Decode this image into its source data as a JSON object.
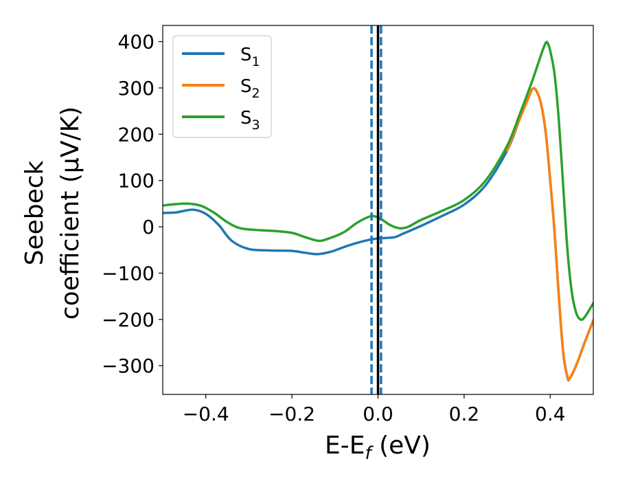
{
  "chart_data": {
    "type": "line",
    "xlabel": "E-E_f (eV)",
    "xlabel_parts": {
      "main": "E-E",
      "sub": "f",
      "tail": " (eV)"
    },
    "ylabel_line1": "Seebeck",
    "ylabel_line2": "coefficient  (μV/K)",
    "xlim": [
      -0.5,
      0.5
    ],
    "ylim": [
      -362,
      435
    ],
    "xticks": [
      -0.4,
      -0.2,
      0.0,
      0.2,
      0.4
    ],
    "xtick_labels": [
      "−0.4",
      "−0.2",
      "0.0",
      "0.2",
      "0.4"
    ],
    "yticks": [
      400,
      300,
      200,
      100,
      0,
      -100,
      -200,
      -300
    ],
    "ytick_labels": [
      "400",
      "300",
      "200",
      "100",
      "0",
      "−100",
      "−200",
      "−300"
    ],
    "grid": false,
    "legend_position": "top-left",
    "vlines": [
      {
        "x": -0.015,
        "style": "dashed",
        "color": "#1f77b4"
      },
      {
        "x": 0.007,
        "style": "dashed",
        "color": "#1f77b4"
      },
      {
        "x": 0.0,
        "style": "solid",
        "color": "#000000"
      }
    ],
    "series": [
      {
        "name": "S_1",
        "label_main": "S",
        "label_sub": "1",
        "color": "#1f77b4",
        "points": [
          [
            -0.5,
            30
          ],
          [
            -0.47,
            31
          ],
          [
            -0.43,
            37
          ],
          [
            -0.4,
            28
          ],
          [
            -0.37,
            4
          ],
          [
            -0.34,
            -30
          ],
          [
            -0.3,
            -48
          ],
          [
            -0.25,
            -51
          ],
          [
            -0.2,
            -52
          ],
          [
            -0.17,
            -56
          ],
          [
            -0.14,
            -59
          ],
          [
            -0.11,
            -54
          ],
          [
            -0.08,
            -44
          ],
          [
            -0.05,
            -35
          ],
          [
            -0.02,
            -28
          ],
          [
            0.0,
            -25
          ],
          [
            0.02,
            -24
          ],
          [
            0.04,
            -22
          ],
          [
            0.06,
            -14
          ],
          [
            0.1,
            2
          ],
          [
            0.15,
            24
          ],
          [
            0.2,
            48
          ],
          [
            0.25,
            90
          ],
          [
            0.3,
            165
          ],
          [
            0.33,
            235
          ],
          [
            0.35,
            280
          ],
          [
            0.36,
            299
          ],
          [
            0.37,
            290
          ],
          [
            0.38,
            260
          ],
          [
            0.39,
            200
          ],
          [
            0.4,
            100
          ],
          [
            0.41,
            -10
          ],
          [
            0.42,
            -150
          ],
          [
            0.43,
            -270
          ],
          [
            0.44,
            -325
          ],
          [
            0.445,
            -328
          ],
          [
            0.46,
            -300
          ],
          [
            0.48,
            -250
          ],
          [
            0.5,
            -202
          ]
        ]
      },
      {
        "name": "S_2",
        "label_main": "S",
        "label_sub": "2",
        "color": "#ff7f0e",
        "points": [
          [
            0.3,
            165
          ],
          [
            0.33,
            235
          ],
          [
            0.35,
            280
          ],
          [
            0.36,
            299
          ],
          [
            0.37,
            290
          ],
          [
            0.38,
            260
          ],
          [
            0.39,
            200
          ],
          [
            0.4,
            100
          ],
          [
            0.41,
            -10
          ],
          [
            0.42,
            -150
          ],
          [
            0.43,
            -270
          ],
          [
            0.44,
            -325
          ],
          [
            0.445,
            -328
          ],
          [
            0.46,
            -300
          ],
          [
            0.48,
            -250
          ],
          [
            0.5,
            -202
          ]
        ]
      },
      {
        "name": "S_3",
        "label_main": "S",
        "label_sub": "3",
        "color": "#2ca02c",
        "points": [
          [
            -0.5,
            46
          ],
          [
            -0.47,
            49
          ],
          [
            -0.44,
            50
          ],
          [
            -0.41,
            45
          ],
          [
            -0.38,
            30
          ],
          [
            -0.35,
            10
          ],
          [
            -0.32,
            -3
          ],
          [
            -0.28,
            -7
          ],
          [
            -0.24,
            -9
          ],
          [
            -0.2,
            -13
          ],
          [
            -0.17,
            -22
          ],
          [
            -0.14,
            -30
          ],
          [
            -0.12,
            -27
          ],
          [
            -0.08,
            -12
          ],
          [
            -0.05,
            8
          ],
          [
            -0.02,
            22
          ],
          [
            -0.005,
            22
          ],
          [
            0.01,
            15
          ],
          [
            0.03,
            3
          ],
          [
            0.05,
            -3
          ],
          [
            0.07,
            0
          ],
          [
            0.1,
            15
          ],
          [
            0.15,
            35
          ],
          [
            0.2,
            58
          ],
          [
            0.25,
            100
          ],
          [
            0.3,
            175
          ],
          [
            0.33,
            245
          ],
          [
            0.36,
            320
          ],
          [
            0.38,
            375
          ],
          [
            0.39,
            398
          ],
          [
            0.395,
            395
          ],
          [
            0.4,
            380
          ],
          [
            0.41,
            330
          ],
          [
            0.42,
            230
          ],
          [
            0.43,
            90
          ],
          [
            0.44,
            -50
          ],
          [
            0.45,
            -140
          ],
          [
            0.46,
            -185
          ],
          [
            0.47,
            -200
          ],
          [
            0.48,
            -195
          ],
          [
            0.5,
            -165
          ]
        ]
      }
    ]
  }
}
